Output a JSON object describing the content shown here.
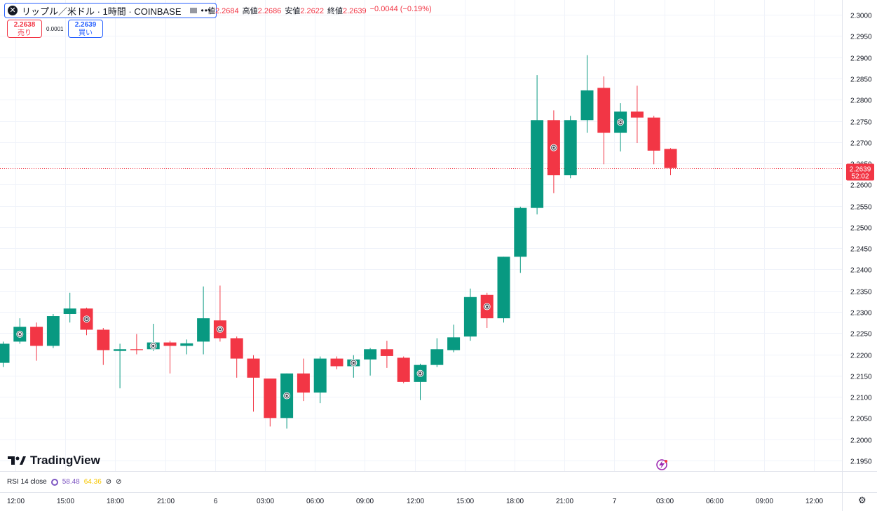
{
  "header": {
    "symbol": "リップル／米ドル · 1時間 · COINBASE",
    "ohlc": [
      {
        "label": "値",
        "value": "2.2684"
      },
      {
        "label": "高値",
        "value": "2.2686"
      },
      {
        "label": "安値",
        "value": "2.2622"
      },
      {
        "label": "終値",
        "value": "2.2639"
      },
      {
        "label": "",
        "value": "−0.0044 (−0.19%)"
      }
    ],
    "sell_price": "2.2638",
    "sell_label": "売り",
    "buy_price": "2.2639",
    "buy_label": "買い",
    "spread": "0.0001"
  },
  "branding": {
    "logo_text": "TradingView"
  },
  "indicator": {
    "name": "RSI 14 close",
    "value1": "58.48",
    "value2": "64.36"
  },
  "chart_data": {
    "type": "candlestick",
    "y_ticks": [
      "2.1950",
      "2.2000",
      "2.2050",
      "2.2100",
      "2.2150",
      "2.2200",
      "2.2250",
      "2.2300",
      "2.2350",
      "2.2400",
      "2.2450",
      "2.2500",
      "2.2550",
      "2.2600",
      "2.2650",
      "2.2700",
      "2.2750",
      "2.2800",
      "2.2850",
      "2.2900",
      "2.2950",
      "2.3000"
    ],
    "ylim": [
      2.1925,
      2.3035
    ],
    "x_ticks": [
      "12:00",
      "15:00",
      "18:00",
      "21:00",
      "6",
      "03:00",
      "06:00",
      "09:00",
      "12:00",
      "15:00",
      "18:00",
      "21:00",
      "7",
      "03:00",
      "06:00",
      "09:00",
      "12:00"
    ],
    "last_price": "2.2639",
    "countdown": "52:02",
    "colors": {
      "up": "#089981",
      "down": "#f23645",
      "grid": "#f0f3fa",
      "axis_text": "#131722"
    },
    "candles": [
      {
        "o": 2.218,
        "h": 2.223,
        "l": 2.217,
        "c": 2.2225
      },
      {
        "o": 2.223,
        "h": 2.2285,
        "l": 2.2225,
        "c": 2.2265
      },
      {
        "o": 2.2265,
        "h": 2.2275,
        "l": 2.2185,
        "c": 2.222
      },
      {
        "o": 2.222,
        "h": 2.2295,
        "l": 2.2215,
        "c": 2.229
      },
      {
        "o": 2.2295,
        "h": 2.2345,
        "l": 2.2275,
        "c": 2.2308
      },
      {
        "o": 2.2308,
        "h": 2.231,
        "l": 2.2245,
        "c": 2.2258
      },
      {
        "o": 2.2258,
        "h": 2.2262,
        "l": 2.2175,
        "c": 2.221
      },
      {
        "o": 2.2208,
        "h": 2.2225,
        "l": 2.212,
        "c": 2.2212
      },
      {
        "o": 2.2212,
        "h": 2.2248,
        "l": 2.22,
        "c": 2.221
      },
      {
        "o": 2.2212,
        "h": 2.2272,
        "l": 2.2208,
        "c": 2.2228
      },
      {
        "o": 2.2228,
        "h": 2.2232,
        "l": 2.2155,
        "c": 2.222
      },
      {
        "o": 2.222,
        "h": 2.2235,
        "l": 2.22,
        "c": 2.2226
      },
      {
        "o": 2.223,
        "h": 2.236,
        "l": 2.22,
        "c": 2.2285
      },
      {
        "o": 2.228,
        "h": 2.2362,
        "l": 2.223,
        "c": 2.2238
      },
      {
        "o": 2.2238,
        "h": 2.2242,
        "l": 2.2145,
        "c": 2.219
      },
      {
        "o": 2.219,
        "h": 2.2198,
        "l": 2.2065,
        "c": 2.2145
      },
      {
        "o": 2.2143,
        "h": 2.2143,
        "l": 2.203,
        "c": 2.205
      },
      {
        "o": 2.205,
        "h": 2.2155,
        "l": 2.2025,
        "c": 2.2155
      },
      {
        "o": 2.2155,
        "h": 2.219,
        "l": 2.209,
        "c": 2.211
      },
      {
        "o": 2.211,
        "h": 2.2195,
        "l": 2.2085,
        "c": 2.219
      },
      {
        "o": 2.219,
        "h": 2.2195,
        "l": 2.2165,
        "c": 2.2172
      },
      {
        "o": 2.2172,
        "h": 2.2198,
        "l": 2.2145,
        "c": 2.2188
      },
      {
        "o": 2.2188,
        "h": 2.2215,
        "l": 2.215,
        "c": 2.2212
      },
      {
        "o": 2.2212,
        "h": 2.2232,
        "l": 2.2168,
        "c": 2.2196
      },
      {
        "o": 2.2192,
        "h": 2.2195,
        "l": 2.2132,
        "c": 2.2135
      },
      {
        "o": 2.2135,
        "h": 2.2178,
        "l": 2.2092,
        "c": 2.2175
      },
      {
        "o": 2.2175,
        "h": 2.2238,
        "l": 2.217,
        "c": 2.2212
      },
      {
        "o": 2.221,
        "h": 2.227,
        "l": 2.2205,
        "c": 2.224
      },
      {
        "o": 2.2242,
        "h": 2.2355,
        "l": 2.2232,
        "c": 2.2335
      },
      {
        "o": 2.234,
        "h": 2.2345,
        "l": 2.2262,
        "c": 2.2285
      },
      {
        "o": 2.2285,
        "h": 2.243,
        "l": 2.2275,
        "c": 2.243
      },
      {
        "o": 2.243,
        "h": 2.2548,
        "l": 2.2392,
        "c": 2.2545
      },
      {
        "o": 2.2545,
        "h": 2.2858,
        "l": 2.253,
        "c": 2.2752
      },
      {
        "o": 2.2752,
        "h": 2.2775,
        "l": 2.258,
        "c": 2.2622
      },
      {
        "o": 2.2622,
        "h": 2.2762,
        "l": 2.2615,
        "c": 2.2752
      },
      {
        "o": 2.2752,
        "h": 2.2905,
        "l": 2.2722,
        "c": 2.2822
      },
      {
        "o": 2.2828,
        "h": 2.2855,
        "l": 2.2648,
        "c": 2.2722
      },
      {
        "o": 2.2722,
        "h": 2.2792,
        "l": 2.2678,
        "c": 2.2772
      },
      {
        "o": 2.2772,
        "h": 2.2833,
        "l": 2.2698,
        "c": 2.2758
      },
      {
        "o": 2.2758,
        "h": 2.2762,
        "l": 2.2648,
        "c": 2.268
      },
      {
        "o": 2.2684,
        "h": 2.2686,
        "l": 2.2622,
        "c": 2.2639
      }
    ],
    "markers": [
      1,
      5,
      9,
      13,
      17,
      21,
      25,
      29,
      33,
      37
    ]
  }
}
